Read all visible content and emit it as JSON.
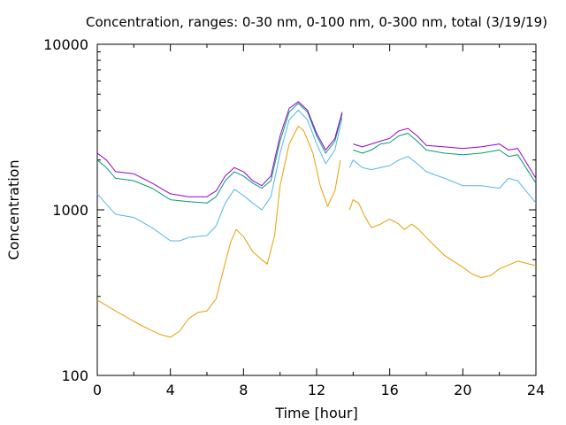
{
  "chart_data": {
    "type": "line",
    "title": "Concentration, ranges: 0-30 nm, 0-100 nm, 0-300 nm, total (3/19/19)",
    "xlabel": "Time [hour]",
    "ylabel": "Concentration",
    "xlim": [
      0,
      24
    ],
    "ylim": [
      100,
      10000
    ],
    "yscale": "log",
    "grid": false,
    "legend": "none",
    "x_ticks": [
      0,
      4,
      8,
      12,
      16,
      20,
      24
    ],
    "x_tick_labels": [
      "0",
      "4",
      "8",
      "12",
      "16",
      "20",
      "24"
    ],
    "y_ticks": [
      100,
      1000,
      10000
    ],
    "y_tick_labels": [
      "100",
      "1000",
      "10000"
    ],
    "series": [
      {
        "color": "#e5a000",
        "segments": [
          [
            [
              0,
              285
            ],
            [
              0.5,
              265
            ],
            [
              1,
              245
            ],
            [
              1.5,
              228
            ],
            [
              2,
              212
            ],
            [
              2.5,
              198
            ],
            [
              3,
              186
            ],
            [
              3.5,
              176
            ],
            [
              4,
              170
            ],
            [
              4.5,
              185
            ],
            [
              5,
              220
            ],
            [
              5.5,
              240
            ],
            [
              6,
              245
            ],
            [
              6.5,
              290
            ],
            [
              7,
              480
            ],
            [
              7.3,
              640
            ],
            [
              7.6,
              760
            ],
            [
              8,
              690
            ],
            [
              8.5,
              560
            ],
            [
              9,
              500
            ],
            [
              9.3,
              470
            ],
            [
              9.7,
              700
            ],
            [
              10,
              1400
            ],
            [
              10.5,
              2500
            ],
            [
              11,
              3200
            ],
            [
              11.3,
              3000
            ],
            [
              11.8,
              2200
            ],
            [
              12.2,
              1400
            ],
            [
              12.6,
              1050
            ],
            [
              13,
              1300
            ],
            [
              13.3,
              2000
            ]
          ],
          [
            [
              13.8,
              1000
            ],
            [
              14,
              1150
            ],
            [
              14.3,
              1100
            ],
            [
              14.6,
              930
            ],
            [
              15,
              780
            ],
            [
              15.5,
              820
            ],
            [
              16,
              880
            ],
            [
              16.5,
              820
            ],
            [
              16.8,
              760
            ],
            [
              17.2,
              820
            ],
            [
              17.6,
              760
            ],
            [
              18,
              680
            ],
            [
              19,
              530
            ],
            [
              20,
              450
            ],
            [
              20.5,
              410
            ],
            [
              21,
              390
            ],
            [
              21.5,
              400
            ],
            [
              22,
              440
            ],
            [
              23,
              490
            ],
            [
              24,
              460
            ]
          ]
        ]
      },
      {
        "color": "#56b4e9",
        "segments": [
          [
            [
              0,
              1250
            ],
            [
              0.5,
              1080
            ],
            [
              1,
              940
            ],
            [
              2,
              900
            ],
            [
              3,
              780
            ],
            [
              4,
              650
            ],
            [
              4.5,
              650
            ],
            [
              5,
              680
            ],
            [
              6,
              700
            ],
            [
              6.5,
              800
            ],
            [
              7,
              1100
            ],
            [
              7.5,
              1330
            ],
            [
              8,
              1220
            ],
            [
              8.5,
              1100
            ],
            [
              9,
              1000
            ],
            [
              9.5,
              1200
            ],
            [
              10,
              2200
            ],
            [
              10.5,
              3500
            ],
            [
              11,
              4000
            ],
            [
              11.5,
              3500
            ],
            [
              12,
              2500
            ],
            [
              12.5,
              1900
            ],
            [
              13,
              2300
            ],
            [
              13.4,
              3600
            ]
          ],
          [
            [
              13.8,
              1800
            ],
            [
              14,
              2000
            ],
            [
              14.5,
              1800
            ],
            [
              15,
              1750
            ],
            [
              15.5,
              1800
            ],
            [
              16,
              1850
            ],
            [
              16.5,
              2000
            ],
            [
              17,
              2100
            ],
            [
              17.5,
              1900
            ],
            [
              18,
              1700
            ],
            [
              19,
              1550
            ],
            [
              20,
              1400
            ],
            [
              21,
              1400
            ],
            [
              22,
              1350
            ],
            [
              22.5,
              1550
            ],
            [
              23,
              1500
            ],
            [
              24,
              1100
            ]
          ]
        ]
      },
      {
        "color": "#009e73",
        "segments": [
          [
            [
              0,
              2000
            ],
            [
              0.5,
              1800
            ],
            [
              1,
              1550
            ],
            [
              2,
              1500
            ],
            [
              3,
              1350
            ],
            [
              4,
              1150
            ],
            [
              5,
              1120
            ],
            [
              6,
              1100
            ],
            [
              6.5,
              1200
            ],
            [
              7,
              1500
            ],
            [
              7.5,
              1700
            ],
            [
              8,
              1600
            ],
            [
              8.5,
              1450
            ],
            [
              9,
              1350
            ],
            [
              9.5,
              1500
            ],
            [
              10,
              2600
            ],
            [
              10.5,
              3900
            ],
            [
              11,
              4400
            ],
            [
              11.5,
              3900
            ],
            [
              12,
              2800
            ],
            [
              12.5,
              2200
            ],
            [
              13,
              2600
            ],
            [
              13.4,
              3800
            ]
          ],
          [
            [
              14,
              2300
            ],
            [
              14.5,
              2200
            ],
            [
              15,
              2300
            ],
            [
              15.5,
              2500
            ],
            [
              16,
              2550
            ],
            [
              16.5,
              2800
            ],
            [
              17,
              2900
            ],
            [
              17.5,
              2600
            ],
            [
              18,
              2300
            ],
            [
              19,
              2200
            ],
            [
              20,
              2150
            ],
            [
              21,
              2200
            ],
            [
              22,
              2300
            ],
            [
              22.5,
              2100
            ],
            [
              23,
              2150
            ],
            [
              24,
              1450
            ]
          ]
        ]
      },
      {
        "color": "#9400d3",
        "segments": [
          [
            [
              0,
              2200
            ],
            [
              0.5,
              2000
            ],
            [
              1,
              1700
            ],
            [
              2,
              1650
            ],
            [
              3,
              1450
            ],
            [
              4,
              1250
            ],
            [
              5,
              1200
            ],
            [
              6,
              1200
            ],
            [
              6.5,
              1300
            ],
            [
              7,
              1600
            ],
            [
              7.5,
              1800
            ],
            [
              8,
              1700
            ],
            [
              8.5,
              1500
            ],
            [
              9,
              1400
            ],
            [
              9.5,
              1600
            ],
            [
              10,
              2800
            ],
            [
              10.5,
              4100
            ],
            [
              11,
              4500
            ],
            [
              11.5,
              4000
            ],
            [
              12,
              2900
            ],
            [
              12.5,
              2300
            ],
            [
              13,
              2700
            ],
            [
              13.4,
              3900
            ]
          ],
          [
            [
              14,
              2500
            ],
            [
              14.5,
              2400
            ],
            [
              15,
              2500
            ],
            [
              15.5,
              2600
            ],
            [
              16,
              2700
            ],
            [
              16.5,
              3000
            ],
            [
              17,
              3100
            ],
            [
              17.5,
              2800
            ],
            [
              18,
              2450
            ],
            [
              19,
              2400
            ],
            [
              20,
              2350
            ],
            [
              21,
              2400
            ],
            [
              22,
              2500
            ],
            [
              22.5,
              2300
            ],
            [
              23,
              2350
            ],
            [
              24,
              1550
            ]
          ]
        ]
      }
    ]
  }
}
